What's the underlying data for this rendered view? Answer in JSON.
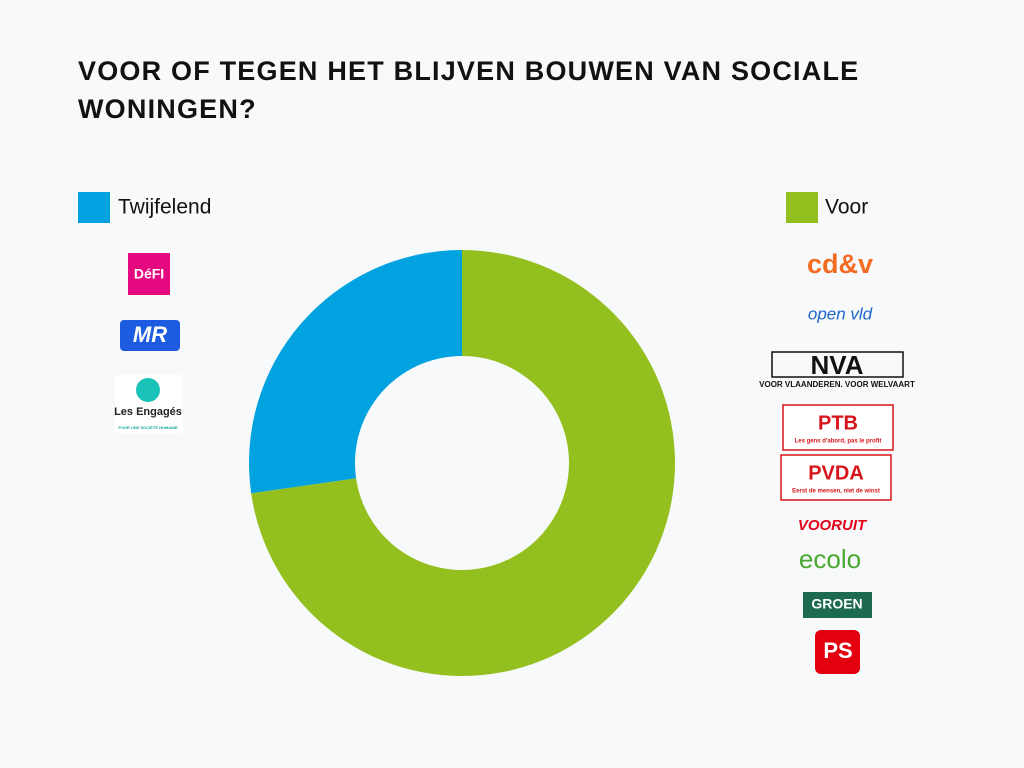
{
  "chart_data": {
    "type": "pie",
    "title": "VOOR OF TEGEN HET BLIJVEN BOUWEN VAN SOCIALE WONINGEN?",
    "categories": [
      "Voor",
      "Twijfelend"
    ],
    "values": [
      8,
      3
    ],
    "colors": [
      "#93c01f",
      "#00a2e0"
    ],
    "donut": true,
    "party_logos": [
      [
        {
          "text": "cd&v"
        },
        {
          "text": "open vld"
        },
        {
          "text": "NVA",
          "tagline": "VOOR VLAANDEREN. VOOR WELVAART"
        },
        {
          "text": "PTB",
          "tagline": "Les gens d'abord, pas le profit"
        },
        {
          "text": "PVDA",
          "tagline": "Eerst de mensen, niet de winst"
        },
        {
          "text": "VOORUIT"
        },
        {
          "text": "ecolo"
        },
        {
          "text": "GROEN"
        },
        {
          "text": "PS"
        }
      ],
      [
        {
          "text": "DéFI"
        },
        {
          "text": "MR"
        },
        {
          "text": "Les Engagés",
          "tagline": "POUR UNE SOCIÉTÉ HUMAINE"
        }
      ]
    ]
  }
}
